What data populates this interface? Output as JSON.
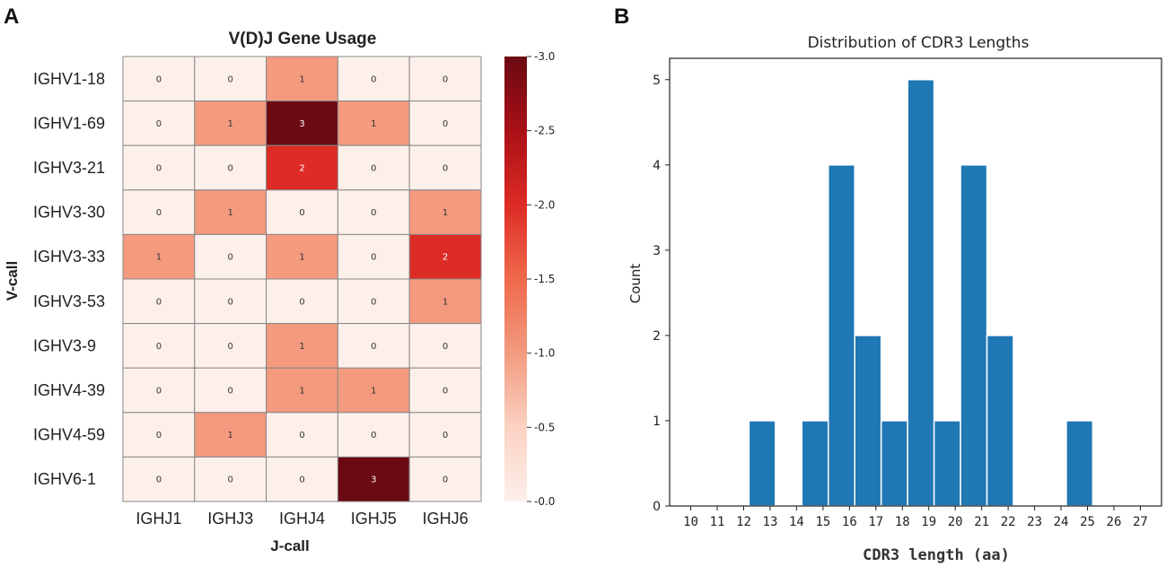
{
  "panels": {
    "a_label": "A",
    "b_label": "B"
  },
  "chart_data": [
    {
      "type": "heatmap",
      "title": "V(D)J Gene Usage",
      "xlabel": "J-call",
      "ylabel": "V-call",
      "columns": [
        "IGHJ1",
        "IGHJ3",
        "IGHJ4",
        "IGHJ5",
        "IGHJ6"
      ],
      "rows": [
        "IGHV1-18",
        "IGHV1-69",
        "IGHV3-21",
        "IGHV3-30",
        "IGHV3-33",
        "IGHV3-53",
        "IGHV3-9",
        "IGHV4-39",
        "IGHV4-59",
        "IGHV6-1"
      ],
      "values": [
        [
          0,
          0,
          1,
          0,
          0
        ],
        [
          0,
          1,
          3,
          1,
          0
        ],
        [
          0,
          0,
          2,
          0,
          0
        ],
        [
          0,
          1,
          0,
          0,
          1
        ],
        [
          1,
          0,
          1,
          0,
          2
        ],
        [
          0,
          0,
          0,
          0,
          1
        ],
        [
          0,
          0,
          1,
          0,
          0
        ],
        [
          0,
          0,
          1,
          1,
          0
        ],
        [
          0,
          1,
          0,
          0,
          0
        ],
        [
          0,
          0,
          0,
          3,
          0
        ]
      ],
      "colorbar": {
        "range": [
          0.0,
          3.0
        ],
        "ticks": [
          "0.0",
          "0.5",
          "1.0",
          "1.5",
          "2.0",
          "2.5",
          "3.0"
        ],
        "colors": {
          "0": "#fdf0eb",
          "1": "#f39a7f",
          "2": "#dd2b25",
          "3": "#6b0a12"
        }
      }
    },
    {
      "type": "bar",
      "title": "Distribution of CDR3 Lengths",
      "xlabel": "CDR3 length (aa)",
      "ylabel": "Count",
      "bar_color": "#1f77b4",
      "bins": [
        {
          "start": 12.2,
          "end": 13.2,
          "count": 1
        },
        {
          "start": 14.2,
          "end": 15.2,
          "count": 1
        },
        {
          "start": 15.2,
          "end": 16.2,
          "count": 4
        },
        {
          "start": 16.2,
          "end": 17.2,
          "count": 2
        },
        {
          "start": 17.2,
          "end": 18.2,
          "count": 1
        },
        {
          "start": 18.2,
          "end": 19.2,
          "count": 5
        },
        {
          "start": 19.2,
          "end": 20.2,
          "count": 1
        },
        {
          "start": 20.2,
          "end": 21.2,
          "count": 4
        },
        {
          "start": 21.2,
          "end": 22.2,
          "count": 2
        },
        {
          "start": 24.2,
          "end": 25.2,
          "count": 1
        }
      ],
      "xticks": [
        "10",
        "11",
        "12",
        "13",
        "14",
        "15",
        "16",
        "17",
        "18",
        "19",
        "20",
        "21",
        "22",
        "23",
        "24",
        "25",
        "26",
        "27"
      ],
      "yticks": [
        "0",
        "1",
        "2",
        "3",
        "4",
        "5"
      ],
      "xlim": [
        9.2,
        27.8
      ],
      "ylim": [
        0,
        5.25
      ]
    }
  ]
}
